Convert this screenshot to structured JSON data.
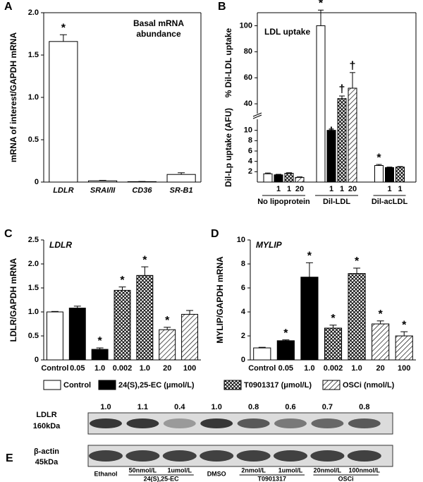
{
  "chart_data": [
    {
      "type": "bar",
      "panel": "A",
      "frame": true,
      "italic_categories": true,
      "annotation": [
        "Basal mRNA",
        "abundance"
      ],
      "ylabel": "mRNA of interest/GAPDH mRNA",
      "categories": [
        "LDLR",
        "SRAI/II",
        "CD36",
        "SR-B1"
      ],
      "values": [
        1.66,
        0.015,
        0.005,
        0.09
      ],
      "errors": [
        0.08,
        0.005,
        0.002,
        0.02
      ],
      "color": "#ffffff",
      "ylim": [
        0,
        2
      ],
      "yticks": [
        0,
        0.5,
        {
          "value": 1,
          "label": "1.0"
        },
        1.5,
        {
          "value": 2,
          "label": "2.0"
        }
      ],
      "markers": [
        {
          "index": 0,
          "text": "*"
        }
      ]
    },
    {
      "type": "broken_bar",
      "panel": "B",
      "frame": true,
      "title": "LDL uptake",
      "ylabel_lower": "Dil-Lp uptake (AFU)",
      "ylabel_upper": "% Dil-LDL uptake",
      "categories": [
        "No lipoprotein",
        "Dil-LDL",
        "Dil-acLDL"
      ],
      "series": [
        {
          "legend": 0,
          "values": [
            1.6,
            100,
            3.2
          ],
          "errors": [
            0.15,
            12,
            0.2
          ],
          "dose_labels": [
            null,
            null,
            null
          ]
        },
        {
          "legend": 1,
          "values": [
            1.4,
            10,
            2.8
          ],
          "errors": [
            0.1,
            3.5,
            0.1
          ],
          "dose_labels": [
            "1",
            "1",
            "1"
          ]
        },
        {
          "legend": 2,
          "values": [
            1.7,
            44,
            2.9
          ],
          "errors": [
            0.1,
            2,
            0.1
          ],
          "dose_labels": [
            "1",
            "1",
            "1"
          ]
        },
        {
          "legend": 3,
          "values": [
            0.9,
            52,
            null
          ],
          "errors": [
            0.1,
            12,
            null
          ],
          "dose_labels": [
            "20",
            "20",
            null
          ]
        }
      ],
      "ylim_lower": [
        0,
        12
      ],
      "yticks_lower": [
        2,
        4,
        6,
        8,
        10
      ],
      "ylim_upper": [
        33,
        110
      ],
      "yticks_upper": [
        40,
        60,
        80,
        100
      ],
      "markers": [
        {
          "series": 0,
          "index": 1,
          "text": "*"
        },
        {
          "series": 1,
          "index": 1,
          "text": "†"
        },
        {
          "series": 2,
          "index": 1,
          "text": "†"
        },
        {
          "series": 3,
          "index": 1,
          "text": "†"
        },
        {
          "series": 0,
          "index": 2,
          "text": "*"
        }
      ]
    },
    {
      "type": "bar",
      "panel": "C",
      "title": "LDLR",
      "ylabel": "LDLR/GAPDH mRNA",
      "categories": [
        "Control",
        "0.05",
        "1.0",
        "0.002",
        "1.0",
        "20",
        "100"
      ],
      "values": [
        1.0,
        1.08,
        0.22,
        1.45,
        1.76,
        0.63,
        0.95
      ],
      "errors": [
        0.01,
        0.04,
        0.03,
        0.07,
        0.18,
        0.05,
        0.08
      ],
      "bar_legend": [
        0,
        1,
        1,
        2,
        2,
        3,
        3
      ],
      "ylim": [
        0,
        2.5
      ],
      "yticks": [
        0,
        0.5,
        {
          "value": 1,
          "label": "1.0"
        },
        1.5,
        {
          "value": 2,
          "label": "2.0"
        },
        2.5
      ],
      "markers": [
        {
          "index": 2,
          "text": "*"
        },
        {
          "index": 3,
          "text": "*"
        },
        {
          "index": 4,
          "text": "*"
        },
        {
          "index": 5,
          "text": "*"
        }
      ]
    },
    {
      "type": "bar",
      "panel": "D",
      "title": "MYLIP",
      "ylabel": "MYLIP/GAPDH mRNA",
      "categories": [
        "Control",
        "0.05",
        "1.0",
        "0.002",
        "1.0",
        "20",
        "100"
      ],
      "values": [
        1.0,
        1.6,
        6.9,
        2.65,
        7.2,
        3.0,
        2.0
      ],
      "errors": [
        0.05,
        0.07,
        1.2,
        0.25,
        0.45,
        0.25,
        0.35
      ],
      "bar_legend": [
        0,
        1,
        1,
        2,
        2,
        3,
        3
      ],
      "ylim": [
        0,
        10
      ],
      "yticks": [
        0,
        2,
        4,
        6,
        8,
        10
      ],
      "markers": [
        {
          "index": 1,
          "text": "*"
        },
        {
          "index": 2,
          "text": "*"
        },
        {
          "index": 3,
          "text": "*"
        },
        {
          "index": 4,
          "text": "*"
        },
        {
          "index": 5,
          "text": "*"
        },
        {
          "index": 6,
          "text": "*"
        }
      ]
    }
  ],
  "legend": [
    {
      "name": "Control",
      "fill": "white"
    },
    {
      "name": "24(S),25-EC (μmol/L)",
      "fill": "black"
    },
    {
      "name": "T0901317 (μmol/L)",
      "fill": "crosshatch"
    },
    {
      "name": "OSCi (nmol/L)",
      "fill": "hatch"
    }
  ],
  "western_blot": {
    "panel": "E",
    "quantification": [
      "1.0",
      "1.1",
      "0.4",
      "1.0",
      "0.8",
      "0.6",
      "0.7",
      "0.8"
    ],
    "rows": [
      {
        "name": "LDLR",
        "size": "160kDa"
      },
      {
        "name": "β-actin",
        "size": "45kDa"
      }
    ],
    "lanes": [
      "Ethanol",
      "50nmol/L",
      "1umol/L",
      "DMSO",
      "2nmol/L",
      "1umol/L",
      "20nmol/L",
      "100nmol/L"
    ],
    "groups": [
      {
        "label": "24(S),25-EC",
        "lanes": [
          1,
          2
        ]
      },
      {
        "label": "T0901317",
        "lanes": [
          4,
          5
        ]
      },
      {
        "label": "OSCi",
        "lanes": [
          6,
          7
        ]
      }
    ]
  }
}
